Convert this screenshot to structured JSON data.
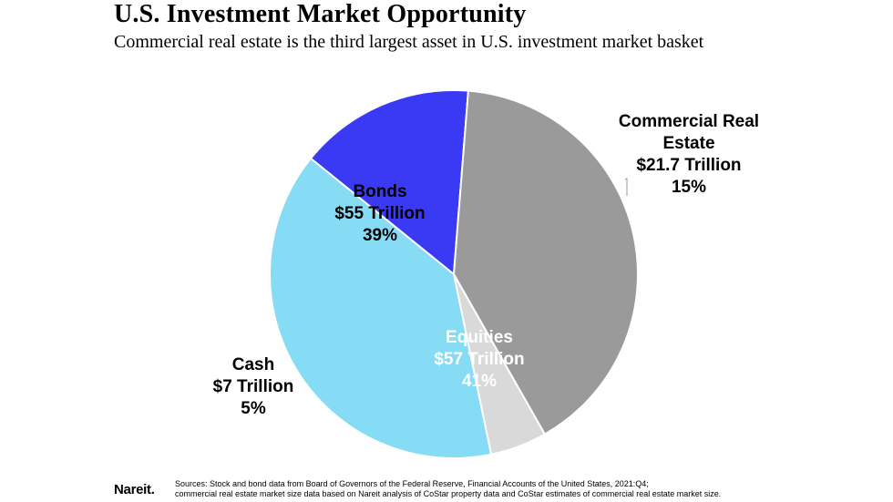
{
  "title": "U.S. Investment Market Opportunity",
  "subtitle": "Commercial real estate is the third largest asset in U.S. investment market basket",
  "footer": {
    "logo": "Nareit.",
    "source_line1": "Sources: Stock and bond data from Board of Governors of the Federal Reserve, Financial Accounts of the United States, 2021:Q4;",
    "source_line2": "commercial real estate market size data based on Nareit analysis of CoStar property data and CoStar estimates of commercial real estate market size."
  },
  "chart_data": {
    "type": "pie",
    "title": "",
    "slices": [
      {
        "name": "Commercial Real Estate",
        "label_lines": [
          "Commercial Real",
          "Estate",
          "$21.7 Trillion",
          "15%"
        ],
        "value": 21.7,
        "percent": 15,
        "color": "#3a3af5",
        "label_color": "#000000"
      },
      {
        "name": "Equities",
        "label_lines": [
          "Equities",
          "$57 Trillion",
          "41%"
        ],
        "value": 57,
        "percent": 41,
        "color": "#9a9a9a",
        "label_color": "#ffffff"
      },
      {
        "name": "Cash",
        "label_lines": [
          "Cash",
          "$7 Trillion",
          "5%"
        ],
        "value": 7,
        "percent": 5,
        "color": "#d9d9d9",
        "label_color": "#000000"
      },
      {
        "name": "Bonds",
        "label_lines": [
          "Bonds",
          "$55 Trillion",
          "39%"
        ],
        "value": 55,
        "percent": 39,
        "color": "#86dcf5",
        "label_color": "#000000"
      }
    ]
  }
}
